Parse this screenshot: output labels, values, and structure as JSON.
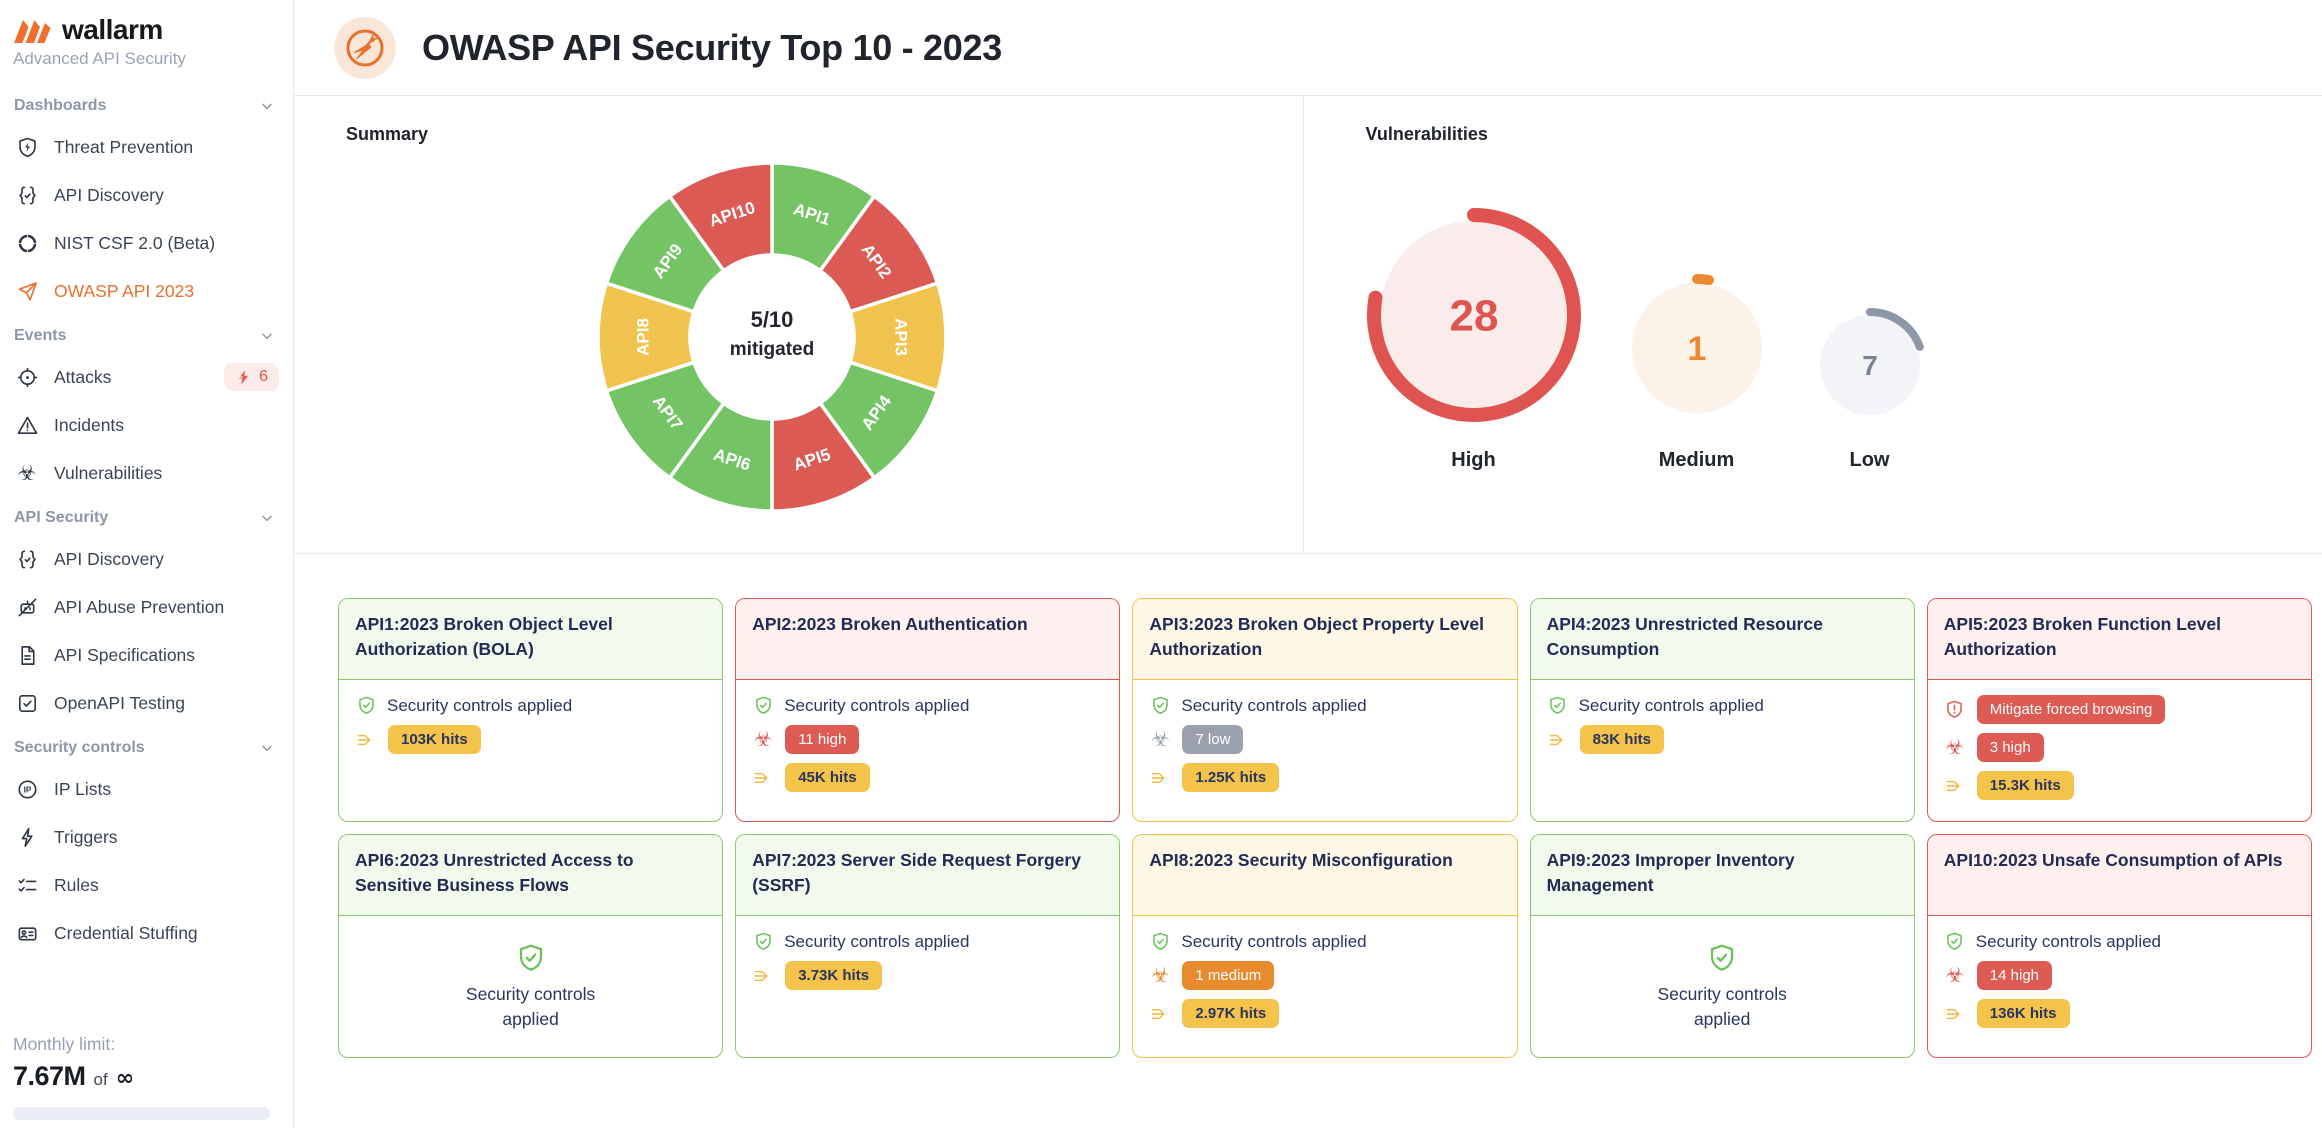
{
  "sidebar": {
    "logo_text": "wallarm",
    "subtitle": "Advanced API Security",
    "sections": [
      {
        "label": "Dashboards",
        "items": [
          {
            "icon": "shield-bolt",
            "label": "Threat Prevention"
          },
          {
            "icon": "braces-check",
            "label": "API Discovery"
          },
          {
            "icon": "nist-wheel",
            "label": "NIST CSF 2.0 (Beta)"
          },
          {
            "icon": "paper-plane",
            "label": "OWASP API 2023",
            "active": true
          }
        ]
      },
      {
        "label": "Events",
        "items": [
          {
            "icon": "target",
            "label": "Attacks",
            "badge": {
              "icon": "attack-bolt",
              "text": "6"
            }
          },
          {
            "icon": "warning-triangle",
            "label": "Incidents"
          },
          {
            "icon": "biohazard",
            "label": "Vulnerabilities"
          }
        ]
      },
      {
        "label": "API Security",
        "items": [
          {
            "icon": "braces-check",
            "label": "API Discovery"
          },
          {
            "icon": "bot-slash",
            "label": "API Abuse Prevention"
          },
          {
            "icon": "document",
            "label": "API Specifications"
          },
          {
            "icon": "box-check",
            "label": "OpenAPI Testing"
          }
        ]
      },
      {
        "label": "Security controls",
        "items": [
          {
            "icon": "ip-circle",
            "label": "IP Lists"
          },
          {
            "icon": "bolt",
            "label": "Triggers"
          },
          {
            "icon": "checklist",
            "label": "Rules"
          },
          {
            "icon": "id-card",
            "label": "Credential Stuffing"
          }
        ]
      }
    ],
    "monthly_limit": {
      "label": "Monthly limit:",
      "value": "7.67M",
      "of_text": "of",
      "infinity": "∞"
    }
  },
  "header": {
    "title": "OWASP API Security Top 10 - 2023"
  },
  "summary": {
    "title": "Summary"
  },
  "vulnerabilities": {
    "title": "Vulnerabilities"
  },
  "chart_data": [
    {
      "type": "pie",
      "title": "Summary",
      "donut": true,
      "center": {
        "line1": "5/10",
        "line2": "mitigated"
      },
      "legend": false,
      "segments": [
        {
          "label": "API1",
          "value": 1,
          "status": "mitigated",
          "color": "#74c364"
        },
        {
          "label": "API2",
          "value": 1,
          "status": "not-mitigated",
          "color": "#dc5a54"
        },
        {
          "label": "API3",
          "value": 1,
          "status": "partial",
          "color": "#f0c24e"
        },
        {
          "label": "API4",
          "value": 1,
          "status": "mitigated",
          "color": "#74c364"
        },
        {
          "label": "API5",
          "value": 1,
          "status": "not-mitigated",
          "color": "#dc5a54"
        },
        {
          "label": "API6",
          "value": 1,
          "status": "mitigated",
          "color": "#74c364"
        },
        {
          "label": "API7",
          "value": 1,
          "status": "mitigated",
          "color": "#74c364"
        },
        {
          "label": "API8",
          "value": 1,
          "status": "partial",
          "color": "#f0c24e"
        },
        {
          "label": "API9",
          "value": 1,
          "status": "mitigated",
          "color": "#74c364"
        },
        {
          "label": "API10",
          "value": 1,
          "status": "not-mitigated",
          "color": "#dc5a54"
        }
      ]
    },
    {
      "type": "gauge",
      "title": "Vulnerabilities",
      "total": 36,
      "gauges": [
        {
          "label": "High",
          "value": 28,
          "ring_color": "#df5450",
          "fill_color": "#fbecec",
          "text_color": "#df5450"
        },
        {
          "label": "Medium",
          "value": 1,
          "ring_color": "#ed8a30",
          "fill_color": "#fdf2e7",
          "text_color": "#ed8a30"
        },
        {
          "label": "Low",
          "value": 7,
          "ring_color": "#8d97a8",
          "fill_color": "#f2f4f7",
          "text_color": "#7a8494"
        }
      ]
    }
  ],
  "cards": [
    {
      "id": "api1",
      "theme": "green",
      "title": "API1:2023 Broken Object Level Authorization (BOLA)",
      "rows": [
        {
          "type": "status",
          "text": "Security controls applied"
        },
        {
          "type": "hits",
          "text": "103K hits"
        }
      ]
    },
    {
      "id": "api2",
      "theme": "red",
      "title": "API2:2023 Broken Authentication",
      "rows": [
        {
          "type": "status",
          "text": "Security controls applied"
        },
        {
          "type": "severity",
          "level": "high",
          "text": "11 high"
        },
        {
          "type": "hits",
          "text": "45K hits"
        }
      ]
    },
    {
      "id": "api3",
      "theme": "yellow",
      "title": "API3:2023 Broken Object Property Level Authorization",
      "rows": [
        {
          "type": "status",
          "text": "Security controls applied"
        },
        {
          "type": "severity",
          "level": "low",
          "text": "7 low"
        },
        {
          "type": "hits",
          "text": "1.25K hits"
        }
      ]
    },
    {
      "id": "api4",
      "theme": "green",
      "title": "API4:2023 Unrestricted Resource Consumption",
      "rows": [
        {
          "type": "status",
          "text": "Security controls applied"
        },
        {
          "type": "hits",
          "text": "83K hits"
        }
      ]
    },
    {
      "id": "api5",
      "theme": "red",
      "title": "API5:2023 Broken Function Level Authorization",
      "rows": [
        {
          "type": "action",
          "text": "Mitigate forced browsing"
        },
        {
          "type": "severity",
          "level": "high",
          "text": "3 high"
        },
        {
          "type": "hits",
          "text": "15.3K hits"
        }
      ]
    },
    {
      "id": "api6",
      "theme": "green",
      "title": "API6:2023 Unrestricted Access to Sensitive Business Flows",
      "layout": "centered",
      "rows": [
        {
          "type": "status",
          "text": "Security controls applied"
        }
      ]
    },
    {
      "id": "api7",
      "theme": "green",
      "title": "API7:2023 Server Side Request Forgery (SSRF)",
      "rows": [
        {
          "type": "status",
          "text": "Security controls applied"
        },
        {
          "type": "hits",
          "text": "3.73K hits"
        }
      ]
    },
    {
      "id": "api8",
      "theme": "yellow",
      "title": "API8:2023 Security Misconfiguration",
      "rows": [
        {
          "type": "status",
          "text": "Security controls applied"
        },
        {
          "type": "severity",
          "level": "medium",
          "text": "1 medium"
        },
        {
          "type": "hits",
          "text": "2.97K hits"
        }
      ]
    },
    {
      "id": "api9",
      "theme": "green",
      "title": "API9:2023 Improper Inventory Management",
      "layout": "centered",
      "rows": [
        {
          "type": "status",
          "text": "Security controls applied"
        }
      ]
    },
    {
      "id": "api10",
      "theme": "red",
      "title": "API10:2023 Unsafe Consumption of APIs",
      "rows": [
        {
          "type": "status",
          "text": "Security controls applied"
        },
        {
          "type": "severity",
          "level": "high",
          "text": "14 high"
        },
        {
          "type": "hits",
          "text": "136K hits"
        }
      ]
    }
  ],
  "colors": {
    "accent": "#e9702f",
    "navy": "#2a3560",
    "shield_green": "#67c153",
    "card_themes": {
      "green": {
        "border": "#8bc86d",
        "header_bg": "#f2faed"
      },
      "red": {
        "border": "#e0574f",
        "header_bg": "#fdf0ee"
      },
      "yellow": {
        "border": "#eec24d",
        "header_bg": "#fdf7e5"
      }
    },
    "badges": {
      "hits": {
        "bg": "#f4c34a",
        "fg": "#2a3560",
        "icon": "#f2b742"
      },
      "high": {
        "bg": "#dd5b53",
        "fg": "#ffffff",
        "icon": "#dd5b53"
      },
      "medium": {
        "bg": "#e88b2e",
        "fg": "#ffffff",
        "icon": "#e88b2e"
      },
      "low": {
        "bg": "#9aa1ad",
        "fg": "#ffffff",
        "icon": "#9aa1ad"
      },
      "action": {
        "bg": "#dd5b53",
        "fg": "#ffffff",
        "icon": "#dd5b53"
      }
    }
  }
}
